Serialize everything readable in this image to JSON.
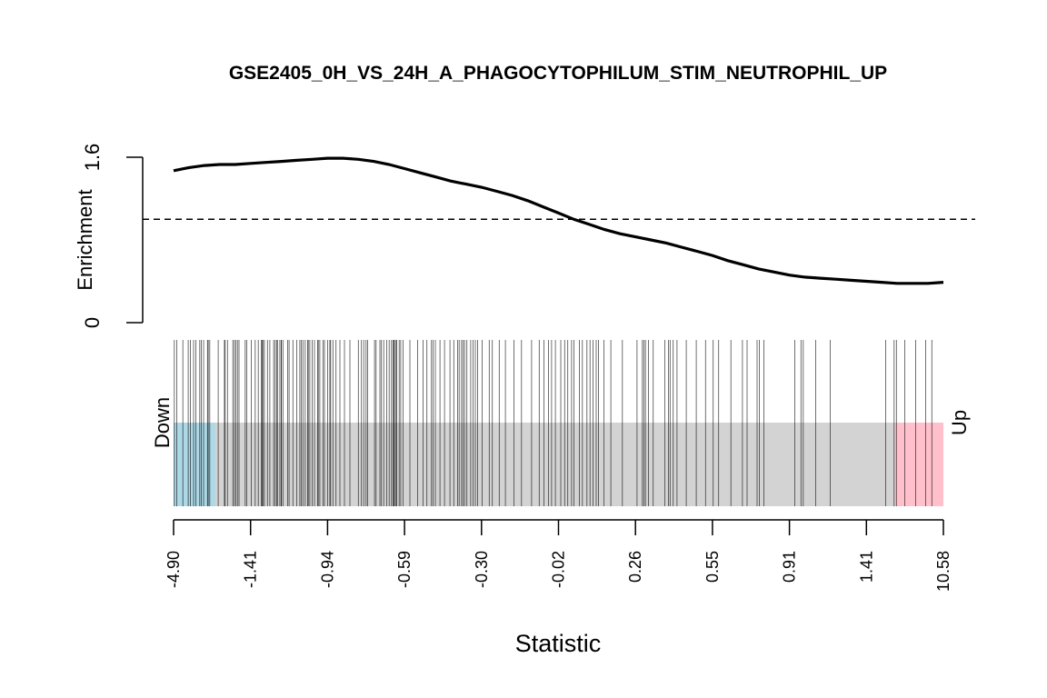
{
  "chart_data": {
    "type": "barcode",
    "title": "GSE2405_0H_VS_24H_A_PHAGOCYTOPHILUM_STIM_NEUTROPHIL_UP",
    "xlabel": "Statistic",
    "ylabel": "Enrichment",
    "ylim": [
      0,
      1.6
    ],
    "y_ticks": [
      "0",
      "1.6"
    ],
    "reference_line": 1.0,
    "x_tick_labels": [
      "-4.90",
      "-1.41",
      "-0.94",
      "-0.59",
      "-0.30",
      "-0.02",
      "0.26",
      "0.55",
      "0.91",
      "1.41",
      "10.58"
    ],
    "x_tick_positions": [
      0,
      0.1,
      0.2,
      0.3,
      0.4,
      0.5,
      0.6,
      0.7,
      0.8,
      0.9,
      1.0
    ],
    "down_label": "Down",
    "up_label": "Up",
    "down_region": [
      0,
      0.054
    ],
    "up_region": [
      0.937,
      1.0
    ],
    "colors": {
      "down": "#ADD8E6",
      "up": "#FFC0CB",
      "middle": "#D3D3D3",
      "line": "#000000"
    },
    "enrichment_curve": {
      "x": [
        0,
        0.02,
        0.04,
        0.06,
        0.08,
        0.1,
        0.12,
        0.14,
        0.16,
        0.18,
        0.2,
        0.22,
        0.24,
        0.26,
        0.28,
        0.3,
        0.32,
        0.34,
        0.36,
        0.38,
        0.4,
        0.42,
        0.44,
        0.46,
        0.48,
        0.5,
        0.52,
        0.54,
        0.56,
        0.58,
        0.6,
        0.62,
        0.64,
        0.66,
        0.68,
        0.7,
        0.72,
        0.74,
        0.76,
        0.78,
        0.8,
        0.82,
        0.84,
        0.86,
        0.88,
        0.9,
        0.92,
        0.94,
        0.96,
        0.98,
        1.0
      ],
      "y": [
        1.47,
        1.5,
        1.52,
        1.53,
        1.53,
        1.54,
        1.55,
        1.56,
        1.57,
        1.58,
        1.59,
        1.59,
        1.58,
        1.56,
        1.53,
        1.49,
        1.45,
        1.41,
        1.37,
        1.34,
        1.31,
        1.27,
        1.23,
        1.18,
        1.12,
        1.06,
        1.0,
        0.95,
        0.9,
        0.86,
        0.83,
        0.8,
        0.77,
        0.73,
        0.69,
        0.65,
        0.6,
        0.56,
        0.52,
        0.49,
        0.46,
        0.44,
        0.43,
        0.42,
        0.41,
        0.4,
        0.39,
        0.38,
        0.38,
        0.38,
        0.39
      ]
    },
    "gene_positions": [
      0.001,
      0.004,
      0.012,
      0.019,
      0.022,
      0.026,
      0.029,
      0.034,
      0.036,
      0.039,
      0.044,
      0.045,
      0.047,
      0.058,
      0.066,
      0.067,
      0.07,
      0.077,
      0.079,
      0.081,
      0.083,
      0.085,
      0.093,
      0.095,
      0.101,
      0.106,
      0.11,
      0.114,
      0.115,
      0.116,
      0.118,
      0.122,
      0.125,
      0.13,
      0.132,
      0.134,
      0.135,
      0.138,
      0.14,
      0.14,
      0.142,
      0.148,
      0.15,
      0.155,
      0.16,
      0.164,
      0.166,
      0.168,
      0.171,
      0.174,
      0.175,
      0.177,
      0.18,
      0.183,
      0.187,
      0.188,
      0.19,
      0.194,
      0.196,
      0.2,
      0.203,
      0.204,
      0.207,
      0.211,
      0.216,
      0.222,
      0.229,
      0.24,
      0.244,
      0.247,
      0.25,
      0.252,
      0.261,
      0.263,
      0.268,
      0.27,
      0.273,
      0.277,
      0.28,
      0.283,
      0.285,
      0.286,
      0.287,
      0.289,
      0.29,
      0.293,
      0.295,
      0.298,
      0.307,
      0.317,
      0.324,
      0.329,
      0.335,
      0.337,
      0.34,
      0.346,
      0.352,
      0.359,
      0.364,
      0.369,
      0.371,
      0.374,
      0.376,
      0.378,
      0.381,
      0.386,
      0.389,
      0.392,
      0.395,
      0.401,
      0.41,
      0.414,
      0.423,
      0.431,
      0.442,
      0.452,
      0.465,
      0.475,
      0.481,
      0.487,
      0.491,
      0.496,
      0.503,
      0.508,
      0.512,
      0.517,
      0.52,
      0.527,
      0.531,
      0.537,
      0.541,
      0.545,
      0.549,
      0.552,
      0.559,
      0.568,
      0.583,
      0.602,
      0.609,
      0.611,
      0.613,
      0.617,
      0.623,
      0.638,
      0.643,
      0.645,
      0.649,
      0.654,
      0.666,
      0.679,
      0.691,
      0.701,
      0.708,
      0.724,
      0.739,
      0.745,
      0.758,
      0.767,
      0.761,
      0.807,
      0.815,
      0.818,
      0.834,
      0.853,
      0.925,
      0.936,
      0.939,
      0.95,
      0.964,
      0.977,
      0.985
    ]
  }
}
